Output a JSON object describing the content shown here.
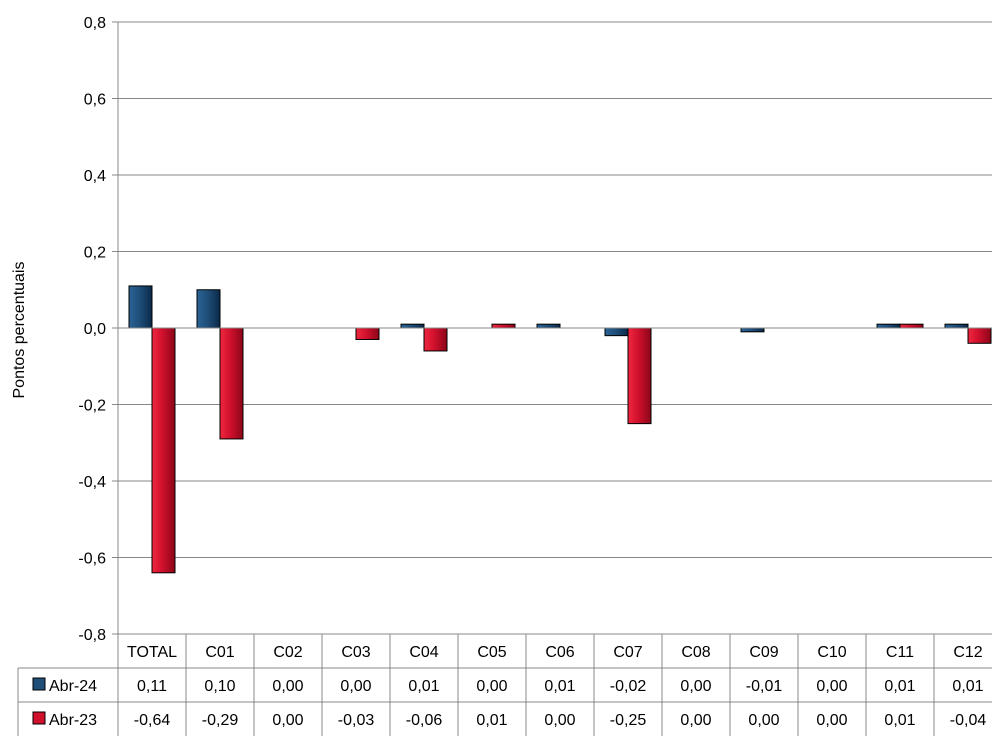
{
  "chart_data": {
    "type": "bar",
    "ylabel": "Pontos percentuais",
    "ylim": [
      -0.8,
      0.8
    ],
    "yticks": [
      0.8,
      0.6,
      0.4,
      0.2,
      0.0,
      -0.2,
      -0.4,
      -0.6,
      -0.8
    ],
    "ytick_labels": [
      "0,8",
      "0,6",
      "0,4",
      "0,2",
      "0,0",
      "-0,2",
      "-0,4",
      "-0,6",
      "-0,8"
    ],
    "grid": true,
    "legend": "data-table-left",
    "categories": [
      "TOTAL",
      "C01",
      "C02",
      "C03",
      "C04",
      "C05",
      "C06",
      "C07",
      "C08",
      "C09",
      "C10",
      "C11",
      "C12"
    ],
    "series": [
      {
        "name": "Abr-24",
        "color": "#1f4e79",
        "values": [
          0.11,
          0.1,
          0.0,
          0.0,
          0.01,
          0.0,
          0.01,
          -0.02,
          0.0,
          -0.01,
          0.0,
          0.01,
          0.01
        ],
        "labels": [
          "0,11",
          "0,10",
          "0,00",
          "0,00",
          "0,01",
          "0,00",
          "0,01",
          "-0,02",
          "0,00",
          "-0,01",
          "0,00",
          "0,01",
          "0,01"
        ]
      },
      {
        "name": "Abr-23",
        "color": "#d0102c",
        "values": [
          -0.64,
          -0.29,
          0.0,
          -0.03,
          -0.06,
          0.01,
          0.0,
          -0.25,
          0.0,
          0.0,
          0.0,
          0.01,
          -0.04
        ],
        "labels": [
          "-0,64",
          "-0,29",
          "0,00",
          "-0,03",
          "-0,06",
          "0,01",
          "0,00",
          "-0,25",
          "0,00",
          "0,00",
          "0,00",
          "0,01",
          "-0,04"
        ]
      }
    ]
  }
}
